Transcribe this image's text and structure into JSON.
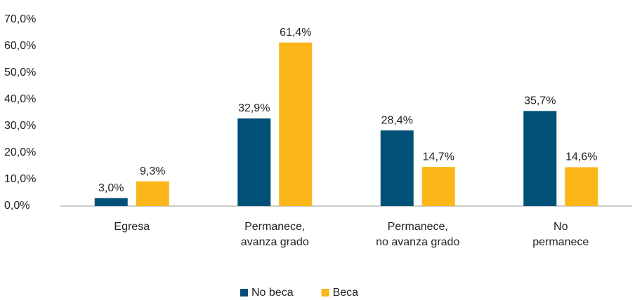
{
  "chart_data": {
    "type": "bar",
    "categories": [
      "Egresa",
      "Permanece,\navanza grado",
      "Permanece,\nno avanza grado",
      "No\npermanece"
    ],
    "series": [
      {
        "name": "No beca",
        "color": "#005078",
        "values": [
          3.0,
          32.9,
          28.4,
          35.7
        ],
        "value_labels": [
          "3,0%",
          "32,9%",
          "28,4%",
          "35,7%"
        ]
      },
      {
        "name": "Beca",
        "color": "#fbb61a",
        "values": [
          9.3,
          61.4,
          14.7,
          14.6
        ],
        "value_labels": [
          "9,3%",
          "61,4%",
          "14,7%",
          "14,6%"
        ]
      }
    ],
    "ylim": [
      0,
      70
    ],
    "yticks": [
      {
        "value": 0,
        "label": "0,0%"
      },
      {
        "value": 10,
        "label": "10,0%"
      },
      {
        "value": 20,
        "label": "20,0%"
      },
      {
        "value": 30,
        "label": "30,0%"
      },
      {
        "value": 40,
        "label": "40,0%"
      },
      {
        "value": 50,
        "label": "50,0%"
      },
      {
        "value": 60,
        "label": "60,0%"
      },
      {
        "value": 70,
        "label": "70,0%"
      }
    ],
    "grid": false,
    "legend": "bottom"
  }
}
